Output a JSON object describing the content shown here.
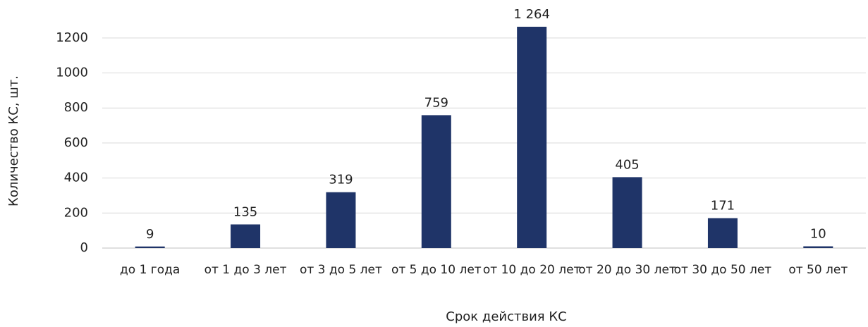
{
  "chart_data": {
    "type": "bar",
    "x_label": "Срок действия КС",
    "y_label": "Количество КС, шт.",
    "categories": [
      "до 1 года",
      "от 1 до 3 лет",
      "от 3 до 5 лет",
      "от 5 до 10 лет",
      "от 10 до 20 лет",
      "от 20 до 30 лет",
      "от 30 до 50 лет",
      "от 50 лет"
    ],
    "values": [
      9,
      135,
      319,
      759,
      1264,
      405,
      171,
      10
    ],
    "value_labels": [
      "9",
      "135",
      "319",
      "759",
      "1 264",
      "405",
      "171",
      "10"
    ],
    "color": "#1f3468",
    "ylim": [
      0,
      1300
    ],
    "yticks": [
      0,
      200,
      400,
      600,
      800,
      1000,
      1200
    ],
    "grid": true
  }
}
